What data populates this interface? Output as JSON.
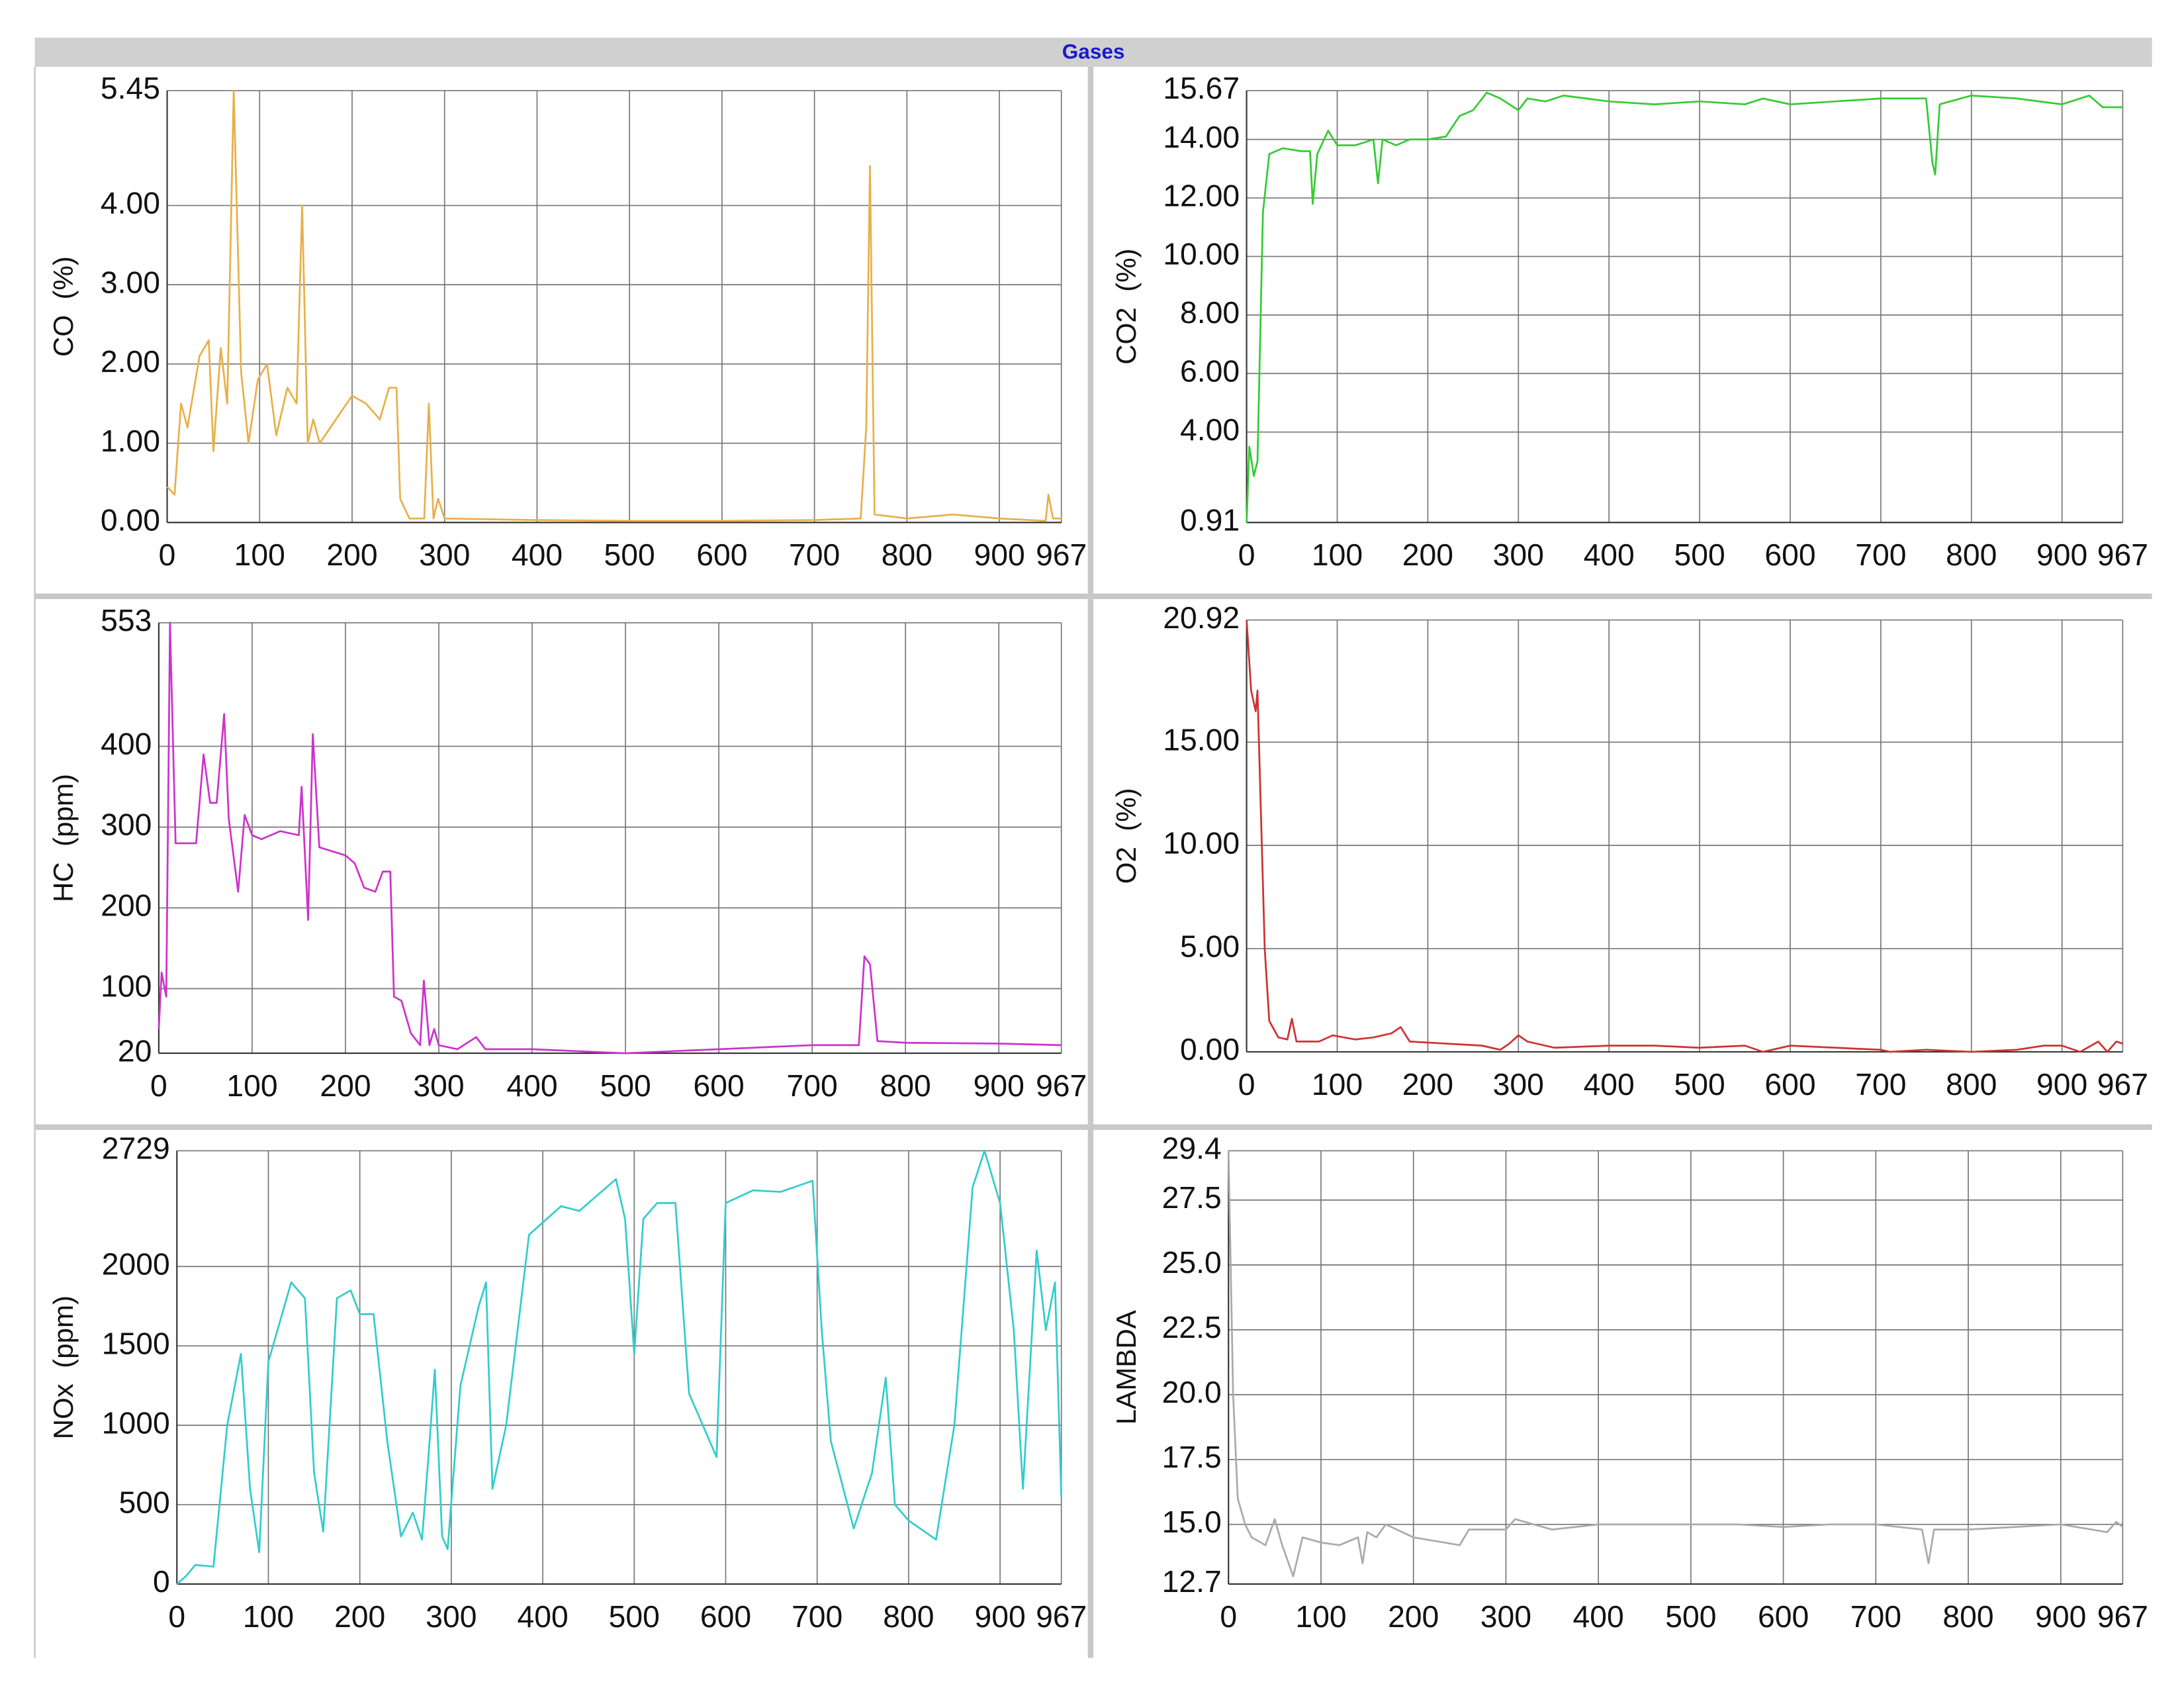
{
  "title": "Gases",
  "chart_data": [
    {
      "type": "line",
      "ylabel": "CO  (%)",
      "x": [
        0,
        8,
        15,
        22,
        35,
        45,
        50,
        58,
        65,
        72,
        80,
        88,
        98,
        108,
        118,
        130,
        140,
        146,
        152,
        158,
        165,
        200,
        215,
        230,
        240,
        248,
        252,
        262,
        278,
        283,
        288,
        293,
        300,
        400,
        500,
        600,
        700,
        750,
        756,
        760,
        765,
        800,
        850,
        900,
        950,
        953,
        958,
        967
      ],
      "series": [
        {
          "color": "#e8b04a",
          "values": [
            0.45,
            0.35,
            1.5,
            1.2,
            2.1,
            2.3,
            0.9,
            2.2,
            1.5,
            5.45,
            1.9,
            1.0,
            1.8,
            2.0,
            1.1,
            1.7,
            1.5,
            4.0,
            1.0,
            1.3,
            1.0,
            1.6,
            1.5,
            1.3,
            1.7,
            1.7,
            0.3,
            0.05,
            0.05,
            1.5,
            0.05,
            0.3,
            0.05,
            0.03,
            0.02,
            0.02,
            0.03,
            0.05,
            1.2,
            4.5,
            0.1,
            0.05,
            0.1,
            0.05,
            0.02,
            0.35,
            0.05,
            0.05
          ]
        }
      ],
      "xlim": [
        0,
        967
      ],
      "xticks": [
        0,
        100,
        200,
        300,
        400,
        500,
        600,
        700,
        800,
        900,
        967
      ],
      "ylim": [
        0,
        5.45
      ],
      "yticks": [
        {
          "value": 0,
          "label": "0.00"
        },
        {
          "value": 1,
          "label": "1.00"
        },
        {
          "value": 2,
          "label": "2.00"
        },
        {
          "value": 3,
          "label": "3.00"
        },
        {
          "value": 4,
          "label": "4.00"
        },
        5.45
      ],
      "grid": true
    },
    {
      "type": "line",
      "ylabel": "CO2  (%)",
      "x": [
        0,
        3,
        8,
        12,
        18,
        25,
        40,
        60,
        70,
        73,
        78,
        90,
        100,
        120,
        140,
        145,
        150,
        165,
        180,
        200,
        220,
        235,
        250,
        265,
        280,
        290,
        300,
        310,
        330,
        350,
        400,
        450,
        500,
        550,
        570,
        600,
        650,
        700,
        750,
        757,
        760,
        765,
        800,
        850,
        900,
        920,
        930,
        945,
        967
      ],
      "series": [
        {
          "color": "#33cc33",
          "values": [
            0.91,
            3.5,
            2.5,
            3.0,
            11.5,
            13.5,
            13.7,
            13.6,
            13.6,
            11.8,
            13.5,
            14.3,
            13.8,
            13.8,
            14.0,
            12.5,
            14.0,
            13.8,
            14.0,
            14.0,
            14.1,
            14.8,
            15.0,
            15.6,
            15.4,
            15.2,
            15.0,
            15.4,
            15.3,
            15.5,
            15.3,
            15.2,
            15.3,
            15.2,
            15.4,
            15.2,
            15.3,
            15.4,
            15.4,
            13.2,
            12.8,
            15.2,
            15.5,
            15.4,
            15.2,
            15.4,
            15.5,
            15.1,
            15.1
          ]
        }
      ],
      "xlim": [
        0,
        967
      ],
      "xticks": [
        0,
        100,
        200,
        300,
        400,
        500,
        600,
        700,
        800,
        900,
        967
      ],
      "ylim": [
        0.91,
        15.67
      ],
      "yticks": [
        0.91,
        {
          "value": 4,
          "label": "4.00"
        },
        {
          "value": 6,
          "label": "6.00"
        },
        {
          "value": 8,
          "label": "8.00"
        },
        {
          "value": 10,
          "label": "10.00"
        },
        {
          "value": 12,
          "label": "12.00"
        },
        {
          "value": 14,
          "label": "14.00"
        },
        15.67
      ],
      "grid": true
    },
    {
      "type": "line",
      "ylabel": "HC  (ppm)",
      "x": [
        0,
        3,
        8,
        12,
        18,
        40,
        48,
        55,
        62,
        70,
        75,
        85,
        92,
        100,
        110,
        130,
        150,
        153,
        160,
        165,
        172,
        200,
        210,
        220,
        232,
        240,
        248,
        252,
        260,
        270,
        280,
        284,
        290,
        295,
        300,
        320,
        340,
        350,
        400,
        500,
        600,
        700,
        750,
        756,
        762,
        770,
        800,
        900,
        967
      ],
      "series": [
        {
          "color": "#cc33cc",
          "values": [
            50,
            120,
            90,
            553,
            280,
            280,
            390,
            330,
            330,
            440,
            310,
            220,
            315,
            290,
            285,
            295,
            290,
            350,
            185,
            415,
            275,
            265,
            255,
            225,
            220,
            245,
            245,
            90,
            85,
            45,
            30,
            110,
            30,
            50,
            30,
            25,
            40,
            25,
            25,
            20,
            25,
            30,
            30,
            140,
            130,
            35,
            33,
            32,
            30
          ]
        }
      ],
      "xlim": [
        0,
        967
      ],
      "xticks": [
        0,
        100,
        200,
        300,
        400,
        500,
        600,
        700,
        800,
        900,
        967
      ],
      "ylim": [
        20,
        553
      ],
      "yticks": [
        20,
        100,
        200,
        300,
        400,
        553
      ],
      "grid": true
    },
    {
      "type": "line",
      "ylabel": "O2  (%)",
      "x": [
        0,
        5,
        10,
        12,
        20,
        25,
        35,
        45,
        50,
        55,
        80,
        95,
        120,
        140,
        160,
        170,
        180,
        220,
        260,
        280,
        290,
        300,
        310,
        340,
        400,
        450,
        500,
        550,
        570,
        600,
        650,
        700,
        710,
        750,
        800,
        850,
        880,
        900,
        920,
        940,
        950,
        960,
        967
      ],
      "series": [
        {
          "color": "#cc3333",
          "values": [
            20.92,
            17.5,
            16.5,
            17.5,
            5,
            1.5,
            0.7,
            0.6,
            1.6,
            0.5,
            0.5,
            0.8,
            0.6,
            0.7,
            0.9,
            1.2,
            0.5,
            0.4,
            0.3,
            0.1,
            0.4,
            0.8,
            0.5,
            0.2,
            0.3,
            0.3,
            0.2,
            0.3,
            0.0,
            0.3,
            0.2,
            0.1,
            0.0,
            0.1,
            0.0,
            0.1,
            0.3,
            0.3,
            0.0,
            0.5,
            0.0,
            0.5,
            0.4
          ]
        }
      ],
      "xlim": [
        0,
        967
      ],
      "xticks": [
        0,
        100,
        200,
        300,
        400,
        500,
        600,
        700,
        800,
        900,
        967
      ],
      "ylim": [
        0,
        20.92
      ],
      "yticks": [
        {
          "value": 0,
          "label": "0.00"
        },
        {
          "value": 5,
          "label": "5.00"
        },
        {
          "value": 10,
          "label": "10.00"
        },
        {
          "value": 15,
          "label": "15.00"
        },
        20.92
      ],
      "grid": true
    },
    {
      "type": "line",
      "ylabel": "NOx  (ppm)",
      "x": [
        0,
        10,
        20,
        40,
        55,
        70,
        80,
        90,
        100,
        115,
        125,
        140,
        150,
        160,
        175,
        190,
        200,
        215,
        230,
        245,
        258,
        268,
        275,
        282,
        290,
        296,
        310,
        330,
        338,
        345,
        360,
        385,
        420,
        440,
        470,
        480,
        490,
        500,
        510,
        525,
        545,
        560,
        590,
        600,
        630,
        660,
        695,
        705,
        715,
        740,
        760,
        775,
        785,
        800,
        830,
        850,
        870,
        883,
        900,
        915,
        925,
        940,
        950,
        960,
        967
      ],
      "series": [
        {
          "color": "#33cccc",
          "values": [
            0,
            50,
            120,
            110,
            1000,
            1450,
            600,
            200,
            1400,
            1700,
            1900,
            1800,
            700,
            330,
            1800,
            1850,
            1700,
            1700,
            900,
            300,
            450,
            280,
            800,
            1350,
            300,
            220,
            1250,
            1750,
            1900,
            600,
            1000,
            2200,
            2380,
            2350,
            2500,
            2550,
            2300,
            1450,
            2300,
            2400,
            2400,
            1200,
            800,
            2400,
            2480,
            2470,
            2540,
            1600,
            900,
            350,
            700,
            1300,
            500,
            400,
            280,
            1000,
            2500,
            2729,
            2400,
            1600,
            600,
            2100,
            1600,
            1900,
            550
          ]
        }
      ],
      "xlim": [
        0,
        967
      ],
      "xticks": [
        0,
        100,
        200,
        300,
        400,
        500,
        600,
        700,
        800,
        900,
        967
      ],
      "ylim": [
        0,
        2729
      ],
      "yticks": [
        0,
        500,
        1000,
        1500,
        2000,
        2729
      ],
      "grid": true
    },
    {
      "type": "line",
      "ylabel": "LAMBDA",
      "x": [
        0,
        5,
        10,
        18,
        25,
        40,
        50,
        58,
        70,
        80,
        100,
        120,
        140,
        145,
        150,
        160,
        170,
        200,
        250,
        260,
        300,
        310,
        350,
        400,
        500,
        550,
        600,
        650,
        700,
        750,
        757,
        763,
        800,
        900,
        950,
        960,
        967
      ],
      "series": [
        {
          "color": "#aaaaaa",
          "values": [
            29.4,
            20,
            16,
            15,
            14.5,
            14.2,
            15.2,
            14.2,
            13.0,
            14.5,
            14.3,
            14.2,
            14.5,
            13.5,
            14.7,
            14.5,
            15.0,
            14.5,
            14.2,
            14.8,
            14.8,
            15.2,
            14.8,
            15.0,
            15.0,
            15.0,
            14.9,
            15.0,
            15.0,
            14.8,
            13.5,
            14.8,
            14.8,
            15.0,
            14.7,
            15.1,
            14.9
          ]
        }
      ],
      "xlim": [
        0,
        967
      ],
      "xticks": [
        0,
        100,
        200,
        300,
        400,
        500,
        600,
        700,
        800,
        900,
        967
      ],
      "ylim": [
        12.7,
        29.4
      ],
      "yticks": [
        12.7,
        {
          "value": 15,
          "label": "15.0"
        },
        17.5,
        {
          "value": 20,
          "label": "20.0"
        },
        22.5,
        {
          "value": 25,
          "label": "25.0"
        },
        27.5,
        29.4
      ],
      "grid": true
    }
  ]
}
